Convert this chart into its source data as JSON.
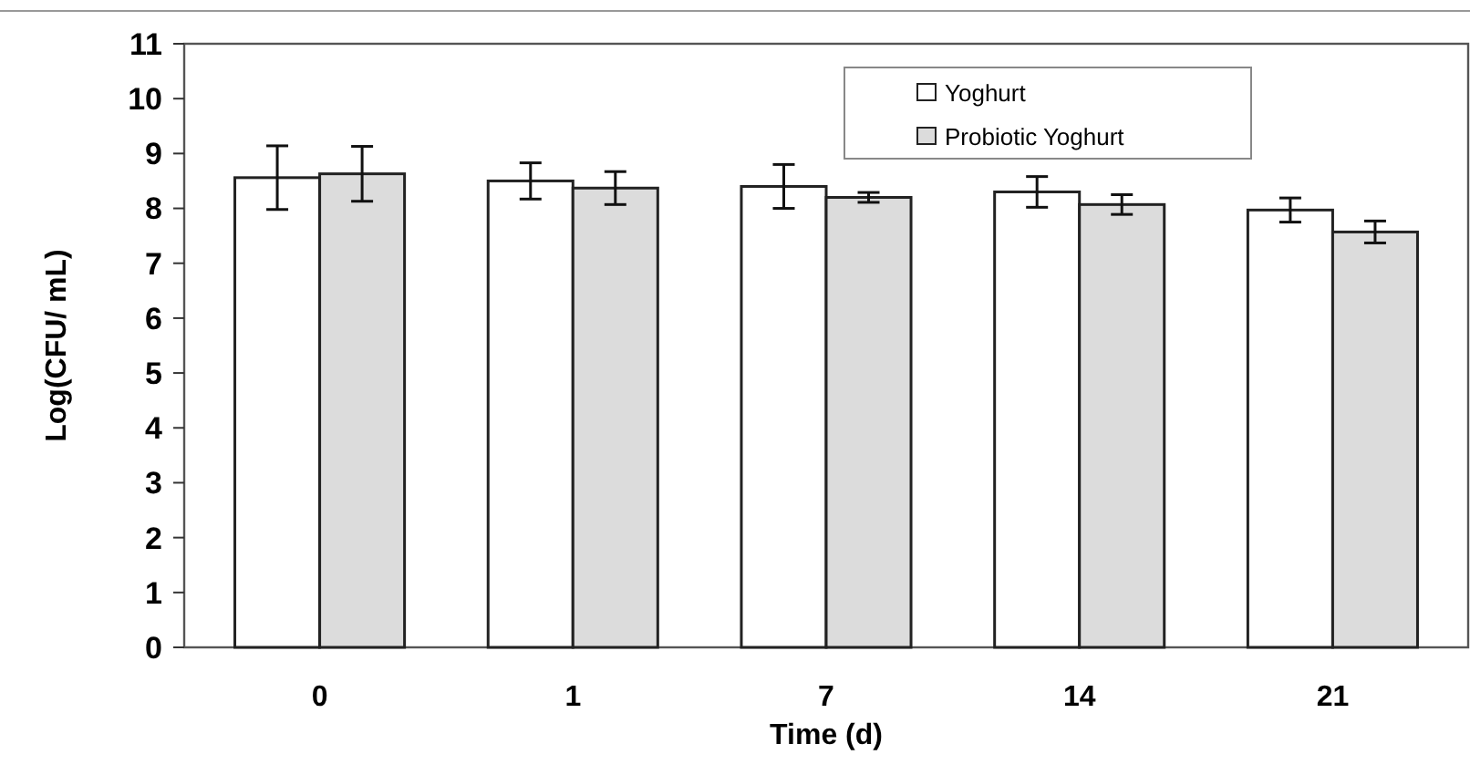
{
  "chart_data": {
    "type": "bar",
    "xlabel": "Time (d)",
    "ylabel": "Log(CFU/ mL)",
    "categories": [
      "0",
      "1",
      "7",
      "14",
      "21"
    ],
    "series": [
      {
        "name": "Yoghurt",
        "color": "#ffffff",
        "values": [
          8.56,
          8.5,
          8.4,
          8.3,
          7.97
        ],
        "errors": [
          0.58,
          0.33,
          0.4,
          0.28,
          0.22
        ]
      },
      {
        "name": "Probiotic Yoghurt",
        "color": "#dcdcdc",
        "values": [
          8.63,
          8.37,
          8.2,
          8.07,
          7.57
        ],
        "errors": [
          0.5,
          0.3,
          0.09,
          0.18,
          0.2
        ]
      }
    ],
    "ylim": [
      0,
      11
    ],
    "yticks": [
      0,
      1,
      2,
      3,
      4,
      5,
      6,
      7,
      8,
      9,
      10,
      11
    ],
    "grid": false,
    "legend": "top"
  }
}
